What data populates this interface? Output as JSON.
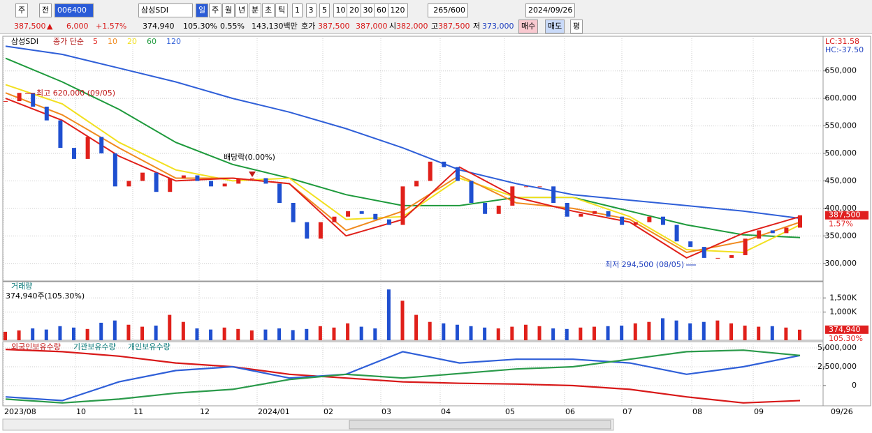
{
  "toolbar": {
    "period_prefix": "주",
    "prev": "전",
    "code": "006400",
    "name": "삼성SDI",
    "periods": [
      "일",
      "주",
      "월",
      "년",
      "분",
      "초",
      "틱"
    ],
    "intervals": [
      "1",
      "3",
      "5",
      "10",
      "20",
      "30",
      "60",
      "120"
    ],
    "count": "265/600",
    "date": "2024/09/26"
  },
  "quote": {
    "price": "387,500",
    "arrow": "▲",
    "change": "6,000",
    "change_pct": "+1.57%",
    "volume": "374,940",
    "volume_ratio": "105.30%",
    "turnover": "0.55%",
    "amount": "143,130백만",
    "ask_label": "호가",
    "ask": "387,500",
    "bid": "387,000",
    "open_label": "시",
    "open": "382,000",
    "high_label": "고",
    "high": "387,500",
    "low_label": "저",
    "low": "373,000",
    "buttons": [
      "매수",
      "매도",
      "평"
    ]
  },
  "price_chart": {
    "name": "삼성SDI",
    "ma_label": "종가 단순",
    "lc": "LC:31.58",
    "hc": "HC:-37.50",
    "ylim": [
      268000,
      713000
    ],
    "yticks": [
      {
        "value": 300000,
        "label": "300,000"
      },
      {
        "value": 350000,
        "label": "350,000"
      },
      {
        "value": 400000,
        "label": "400,000"
      },
      {
        "value": 450000,
        "label": "450,000"
      },
      {
        "value": 500000,
        "label": "500,000"
      },
      {
        "value": 550000,
        "label": "550,000"
      },
      {
        "value": 600000,
        "label": "600,000"
      },
      {
        "value": 650000,
        "label": "650,000"
      }
    ],
    "closes": [
      595000,
      610000,
      585000,
      560000,
      510000,
      490000,
      530000,
      500000,
      440000,
      450000,
      465000,
      430000,
      455000,
      460000,
      450000,
      440000,
      445000,
      455000,
      455000,
      445000,
      410000,
      375000,
      345000,
      375000,
      385000,
      395000,
      390000,
      380000,
      370000,
      440000,
      450000,
      485000,
      475000,
      450000,
      410000,
      390000,
      405000,
      440000,
      440000,
      440000,
      410000,
      385000,
      390000,
      395000,
      385000,
      370000,
      375000,
      385000,
      370000,
      340000,
      330000,
      310000,
      310000,
      315000,
      345000,
      360000,
      355000,
      365000,
      387500
    ],
    "up_color": "#e0201a",
    "down_color": "#1f4fd0",
    "ma_series": [
      {
        "name": "5",
        "color": "#e0201a",
        "values": [
          600000,
          560000,
          495000,
          450000,
          455000,
          445000,
          350000,
          380000,
          475000,
          420000,
          395000,
          375000,
          310000,
          355000,
          385000
        ]
      },
      {
        "name": "10",
        "color": "#f08a1e",
        "values": [
          610000,
          570000,
          510000,
          455000,
          455000,
          445000,
          360000,
          395000,
          460000,
          410000,
          400000,
          380000,
          320000,
          340000,
          375000
        ]
      },
      {
        "name": "20",
        "color": "#f2e020",
        "values": [
          625000,
          590000,
          520000,
          470000,
          450000,
          455000,
          380000,
          385000,
          455000,
          420000,
          420000,
          385000,
          325000,
          320000,
          370000
        ]
      },
      {
        "name": "60",
        "color": "#1e9a3c",
        "values": [
          673000,
          630000,
          580000,
          520000,
          480000,
          455000,
          425000,
          405000,
          405000,
          420000,
          420000,
          395000,
          370000,
          352000,
          347000
        ]
      },
      {
        "name": "120",
        "color": "#2f5fd8",
        "values": [
          695000,
          680000,
          655000,
          630000,
          600000,
          575000,
          545000,
          510000,
          470000,
          445000,
          425000,
          415000,
          405000,
          395000,
          382000
        ]
      }
    ],
    "annotations": {
      "high": "최고 620,000 (09/05)",
      "dividend": "배당락(0.00%)",
      "low": "최저 294,500 (08/05)"
    },
    "last_label": "387,500",
    "last_pct": "1.57%"
  },
  "volume_chart": {
    "title": "거래량",
    "info": "374,940주(105.30%)",
    "ylim": [
      0,
      2075000
    ],
    "yticks": [
      {
        "value": 1000000,
        "label": "1,000K"
      },
      {
        "value": 1500000,
        "label": "1,500K"
      }
    ],
    "values": [
      300000,
      350000,
      420000,
      380000,
      500000,
      450000,
      400000,
      620000,
      700000,
      550000,
      480000,
      520000,
      900000,
      650000,
      420000,
      380000,
      450000,
      400000,
      350000,
      380000,
      420000,
      360000,
      400000,
      500000,
      450000,
      600000,
      480000,
      420000,
      1800000,
      1400000,
      900000,
      650000,
      600000,
      550000,
      500000,
      450000,
      420000,
      480000,
      550000,
      500000,
      420000,
      400000,
      450000,
      480000,
      500000,
      520000,
      600000,
      650000,
      780000,
      700000,
      600000,
      650000,
      700000,
      600000,
      520000,
      480000,
      500000,
      450000,
      374940
    ],
    "last_label": "374,940",
    "last_pct": "105.30%"
  },
  "holdings_chart": {
    "ylim": [
      -2690000,
      5830000
    ],
    "yticks": [
      {
        "value": 0,
        "label": "0"
      },
      {
        "value": 2500000,
        "label": "2,500,000"
      },
      {
        "value": 5000000,
        "label": "5,000,000"
      }
    ],
    "series": [
      {
        "name": "외국인보유수량",
        "color": "#d81818",
        "values": [
          4800000,
          4500000,
          3900000,
          3000000,
          2500000,
          1500000,
          1000000,
          500000,
          300000,
          200000,
          0,
          -500000,
          -1500000,
          -2300000,
          -2000000
        ]
      },
      {
        "name": "기관보유수량",
        "color": "#2f5fd8",
        "values": [
          -1500000,
          -2000000,
          500000,
          2000000,
          2500000,
          1000000,
          1500000,
          4500000,
          3000000,
          3500000,
          3500000,
          3000000,
          1500000,
          2500000,
          4000000
        ]
      },
      {
        "name": "개인보유수량",
        "color": "#2a9a4a",
        "values": [
          -1800000,
          -2300000,
          -1800000,
          -1000000,
          -500000,
          800000,
          1500000,
          1000000,
          1600000,
          2200000,
          2500000,
          3500000,
          4500000,
          4700000,
          4000000
        ]
      }
    ]
  },
  "x_axis": {
    "labels": [
      "2023/08",
      "10",
      "11",
      "12",
      "2024/01",
      "02",
      "03",
      "04",
      "05",
      "06",
      "07",
      "08",
      "09",
      "09/26"
    ]
  }
}
